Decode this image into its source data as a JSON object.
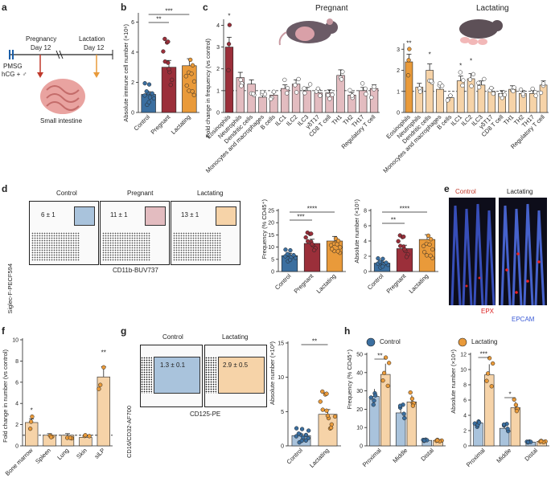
{
  "figure": {
    "labels": [
      "a",
      "b",
      "c",
      "d",
      "e",
      "f",
      "g",
      "h"
    ]
  },
  "a": {
    "pregnancy": "Pregnancy",
    "day12a": "Day 12",
    "lactation": "Lactation",
    "day12b": "Day 12",
    "pmsg": "PMSG",
    "hcg": "hCG + ♂",
    "intestine": "Small intestine"
  },
  "b": {
    "ylabel": "Absolute immune cell number (×10⁶)",
    "ticks": [
      "0",
      "2",
      "4",
      "6"
    ],
    "groups": [
      "Control",
      "Pregnant",
      "Lactating"
    ],
    "values": [
      1.2,
      3.0,
      3.1
    ],
    "sig": [
      "**",
      "***"
    ]
  },
  "c": {
    "title_left": "Pregnant",
    "title_right": "Lactating",
    "ylabel": "Fold change in frequency (vs control)",
    "ticks_left": [
      "0",
      "1",
      "2",
      "3",
      "4"
    ],
    "ticks_right": [
      "0",
      "1",
      "2",
      "3"
    ],
    "categories": [
      "Eosinophils",
      "Neutrophils",
      "Dendritic cells",
      "Monocytes and macrophages",
      "B cells",
      "ILC1",
      "ILC2",
      "ILC3",
      "γδT17",
      "CD8 T cell",
      "TH1",
      "TH2",
      "TH17",
      "Regulatory T cell"
    ],
    "pregnant": [
      3.0,
      1.6,
      1.3,
      0.7,
      0.8,
      1.1,
      1.3,
      1.0,
      0.9,
      0.9,
      1.7,
      0.8,
      1.0,
      1.1
    ],
    "lactating": [
      2.4,
      1.2,
      2.0,
      1.1,
      0.7,
      1.5,
      1.6,
      1.3,
      1.0,
      0.9,
      1.1,
      0.9,
      0.9,
      1.3
    ],
    "sig_left": [
      "*"
    ],
    "sig_right": [
      "**",
      "*",
      "*",
      "*"
    ]
  },
  "d": {
    "flow_titles": [
      "Control",
      "Pregnant",
      "Lactating"
    ],
    "flow_values": [
      "6 ± 1",
      "11 ± 1",
      "13 ± 1"
    ],
    "ylabel_flow": "Siglec-F-PECF594",
    "xlabel_flow": "CD11b-BUV737",
    "freq_ylabel": "Frequency (% CD45⁺)",
    "freq_ticks": [
      "0",
      "5",
      "10",
      "15",
      "20",
      "25"
    ],
    "freq_values": [
      6.5,
      11.5,
      12.5
    ],
    "abs_ylabel": "Absolute number (×10⁵)",
    "abs_ticks": [
      "0",
      "2",
      "4",
      "6",
      "8"
    ],
    "abs_values": [
      1.1,
      3.0,
      4.2
    ],
    "groups": [
      "Control",
      "Pregnant",
      "Lactating"
    ],
    "sig_freq": [
      "***",
      "****"
    ],
    "sig_abs": [
      "**",
      "****"
    ]
  },
  "e": {
    "title_left": "Control",
    "title_right": "Lactating",
    "epx": "EPX",
    "epcam": "EPCAM"
  },
  "f": {
    "ylabel": "Fold change in number (vs control)",
    "ticks": [
      "0",
      "2",
      "4",
      "6",
      "8",
      "10"
    ],
    "categories": [
      "Bone marrow",
      "Spleen",
      "Lung",
      "Skin",
      "siLP"
    ],
    "values": [
      2.2,
      1.0,
      1.0,
      0.8,
      6.5
    ],
    "sig": [
      "*",
      "**"
    ]
  },
  "g": {
    "flow_titles": [
      "Control",
      "Lactating"
    ],
    "flow_values": [
      "1.3 ± 0.1",
      "2.9 ± 0.5"
    ],
    "ylabel_flow": "CD16/CD32-AF700",
    "xlabel_flow": "CD125-PE",
    "abs_ylabel": "Absolute number (×10³)",
    "ticks": [
      "0",
      "5",
      "10",
      "15"
    ],
    "groups": [
      "Control",
      "Lactating"
    ],
    "values": [
      1.5,
      4.6
    ],
    "sig": [
      "**"
    ]
  },
  "h": {
    "legend": [
      "Control",
      "Lactating"
    ],
    "freq_ylabel": "Frequency (% CD45⁺)",
    "freq_ticks": [
      "0",
      "10",
      "20",
      "30",
      "40",
      "50"
    ],
    "abs_ylabel": "Absolute number (×10⁴)",
    "abs_ticks": [
      "0",
      "2",
      "4",
      "6",
      "8",
      "10",
      "12"
    ],
    "regions": [
      "Proximal",
      "Middle",
      "Distal"
    ],
    "freq_control": [
      27,
      18,
      3
    ],
    "freq_lact": [
      39,
      24,
      3
    ],
    "abs_control": [
      3.0,
      2.3,
      0.5
    ],
    "abs_lact": [
      9.3,
      5.0,
      0.6
    ],
    "sig_freq": [
      "**"
    ],
    "sig_abs": [
      "***",
      "*"
    ]
  },
  "colors": {
    "control": "#3b6fa0",
    "pregnant": "#9b2f3a",
    "lactating": "#e99a3a",
    "control_light": "#a9c3dc",
    "pregnant_light": "#e3bcc0",
    "lactating_light": "#f6d3a8"
  }
}
